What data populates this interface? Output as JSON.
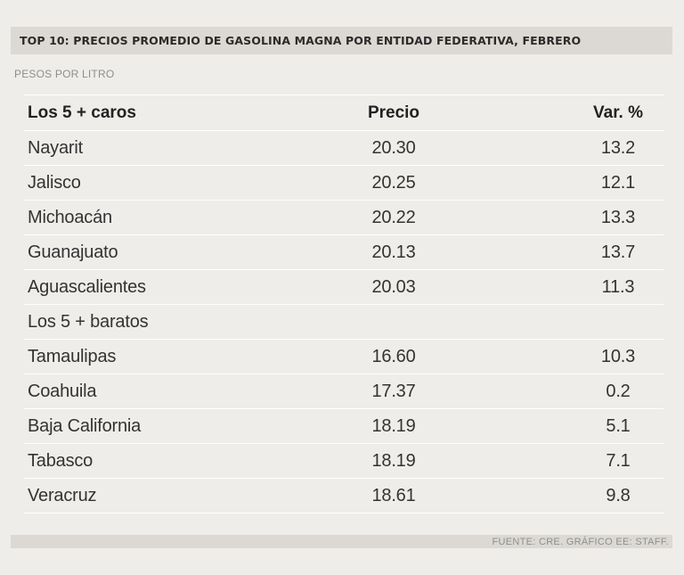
{
  "title": "TOP 10: PRECIOS PROMEDIO DE GASOLINA MAGNA POR ENTIDAD FEDERATIVA, FEBRERO",
  "subtitle": "PESOS POR LITRO",
  "table": {
    "headers": [
      "Los 5 + caros",
      "Precio",
      "Var. %"
    ],
    "rows": [
      {
        "name": "Nayarit",
        "price": "20.30",
        "var": "13.2"
      },
      {
        "name": "Jalisco",
        "price": "20.25",
        "var": "12.1"
      },
      {
        "name": "Michoacán",
        "price": "20.22",
        "var": "13.3"
      },
      {
        "name": "Guanajuato",
        "price": "20.13",
        "var": "13.7"
      },
      {
        "name": "Aguascalientes",
        "price": "20.03",
        "var": "11.3"
      },
      {
        "name": "Los 5 + baratos",
        "price": "",
        "var": ""
      },
      {
        "name": "Tamaulipas",
        "price": "16.60",
        "var": "10.3"
      },
      {
        "name": "Coahuila",
        "price": "17.37",
        "var": "0.2"
      },
      {
        "name": "Baja California",
        "price": "18.19",
        "var": "5.1"
      },
      {
        "name": "Tabasco",
        "price": "18.19",
        "var": "7.1"
      },
      {
        "name": "Veracruz",
        "price": "18.61",
        "var": "9.8"
      }
    ]
  },
  "footer": "FUENTE:  CRE. GRÁFICO EE: STAFF."
}
